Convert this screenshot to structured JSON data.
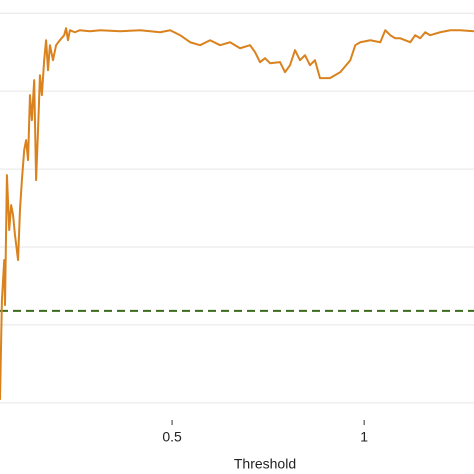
{
  "chart_data": {
    "type": "line",
    "xlabel": "Threshold",
    "x": [
      0.052,
      0.057,
      0.063,
      0.065,
      0.07,
      0.076,
      0.081,
      0.086,
      0.091,
      0.099,
      0.104,
      0.109,
      0.115,
      0.12,
      0.125,
      0.13,
      0.135,
      0.141,
      0.146,
      0.151,
      0.156,
      0.161,
      0.167,
      0.172,
      0.177,
      0.182,
      0.19,
      0.198,
      0.208,
      0.219,
      0.224,
      0.229,
      0.234,
      0.247,
      0.26,
      0.286,
      0.313,
      0.365,
      0.417,
      0.469,
      0.495,
      0.521,
      0.547,
      0.573,
      0.599,
      0.625,
      0.651,
      0.677,
      0.703,
      0.716,
      0.729,
      0.742,
      0.755,
      0.781,
      0.794,
      0.807,
      0.82,
      0.833,
      0.846,
      0.859,
      0.872,
      0.885,
      0.911,
      0.938,
      0.964,
      0.977,
      0.99,
      1.016,
      1.042,
      1.055,
      1.068,
      1.081,
      1.094,
      1.12,
      1.133,
      1.146,
      1.159,
      1.172,
      1.198,
      1.224,
      1.25,
      1.286
    ],
    "series": [
      {
        "color": "#d9821e",
        "values": [
          0.038,
          1.321,
          1.833,
          1.256,
          2.923,
          2.218,
          2.538,
          2.41,
          2.154,
          1.833,
          2.474,
          2.859,
          3.244,
          3.372,
          3.115,
          3.949,
          3.628,
          4.141,
          2.859,
          3.5,
          4.205,
          3.949,
          4.397,
          4.654,
          4.269,
          4.59,
          4.397,
          4.59,
          4.654,
          4.718,
          4.808,
          4.654,
          4.782,
          4.756,
          4.782,
          4.769,
          4.782,
          4.769,
          4.782,
          4.756,
          4.782,
          4.718,
          4.628,
          4.59,
          4.654,
          4.59,
          4.628,
          4.551,
          4.59,
          4.5,
          4.372,
          4.423,
          4.359,
          4.372,
          4.244,
          4.333,
          4.526,
          4.397,
          4.462,
          4.333,
          4.397,
          4.167,
          4.167,
          4.244,
          4.397,
          4.59,
          4.628,
          4.654,
          4.628,
          4.782,
          4.718,
          4.679,
          4.679,
          4.628,
          4.718,
          4.679,
          4.756,
          4.718,
          4.756,
          4.782,
          4.782,
          4.769
        ]
      }
    ],
    "hline": {
      "y": 1.18,
      "color": "#3d6b1e"
    },
    "xlim": [
      0.052,
      1.286
    ],
    "xticks": [
      0.5,
      1
    ],
    "ylim": [
      -0.22,
      5.17
    ],
    "yticks": [
      0,
      1,
      2,
      3,
      4,
      5
    ],
    "grid": true
  }
}
